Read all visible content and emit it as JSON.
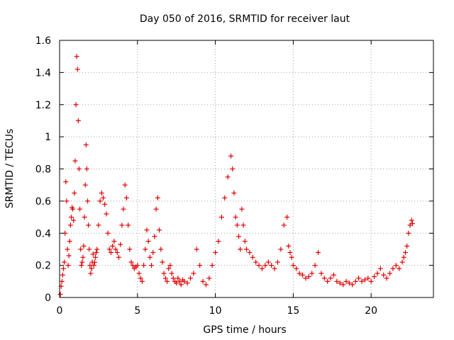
{
  "chart_data": {
    "type": "scatter",
    "title": "Day 050 of 2016, SRMTID for receiver laut",
    "xlabel": "GPS time / hours",
    "ylabel": "SRMTID / TECUs",
    "xlim": [
      0,
      24
    ],
    "ylim": [
      0,
      1.6
    ],
    "xticks": [
      0,
      5,
      10,
      15,
      20
    ],
    "xtick_labels": [
      "0",
      "5",
      "10",
      "15",
      "20"
    ],
    "yticks": [
      0,
      0.2,
      0.4,
      0.6,
      0.8,
      1.0,
      1.2,
      1.4,
      1.6
    ],
    "ytick_labels": [
      "0",
      "0.2",
      "0.4",
      "0.6",
      "0.8",
      "1",
      "1.2",
      "1.4",
      "1.6"
    ],
    "grid": true,
    "marker": "+",
    "color": "#e00000",
    "series": [
      {
        "name": "laut",
        "x": [
          0.05,
          0.1,
          0.15,
          0.2,
          0.25,
          0.3,
          0.35,
          0.4,
          0.45,
          0.5,
          0.55,
          0.6,
          0.65,
          0.7,
          0.75,
          0.8,
          0.85,
          0.9,
          0.95,
          1.0,
          1.05,
          1.1,
          1.15,
          1.2,
          1.25,
          1.3,
          1.35,
          1.4,
          1.45,
          1.5,
          1.55,
          1.6,
          1.65,
          1.7,
          1.75,
          1.8,
          1.85,
          1.9,
          1.95,
          2.0,
          2.05,
          2.1,
          2.15,
          2.2,
          2.25,
          2.3,
          2.35,
          2.4,
          2.5,
          2.6,
          2.7,
          2.8,
          2.9,
          3.0,
          3.1,
          3.2,
          3.3,
          3.4,
          3.5,
          3.6,
          3.7,
          3.8,
          3.9,
          4.0,
          4.1,
          4.2,
          4.3,
          4.4,
          4.5,
          4.6,
          4.7,
          4.8,
          4.9,
          5.0,
          5.1,
          5.2,
          5.3,
          5.4,
          5.5,
          5.6,
          5.7,
          5.8,
          5.9,
          6.0,
          6.1,
          6.2,
          6.3,
          6.4,
          6.5,
          6.6,
          6.7,
          6.8,
          6.9,
          7.0,
          7.1,
          7.2,
          7.3,
          7.4,
          7.5,
          7.6,
          7.7,
          7.8,
          7.9,
          8.0,
          8.2,
          8.4,
          8.6,
          8.8,
          9.0,
          9.2,
          9.4,
          9.6,
          9.8,
          10.0,
          10.2,
          10.4,
          10.6,
          10.8,
          11.0,
          11.1,
          11.2,
          11.3,
          11.4,
          11.5,
          11.6,
          11.7,
          11.8,
          11.9,
          12.0,
          12.2,
          12.4,
          12.6,
          12.8,
          13.0,
          13.2,
          13.4,
          13.6,
          13.8,
          14.0,
          14.2,
          14.4,
          14.6,
          14.7,
          14.8,
          14.9,
          15.0,
          15.2,
          15.4,
          15.6,
          15.8,
          16.0,
          16.2,
          16.4,
          16.6,
          16.8,
          17.0,
          17.2,
          17.4,
          17.6,
          17.8,
          18.0,
          18.2,
          18.4,
          18.6,
          18.8,
          19.0,
          19.2,
          19.4,
          19.6,
          19.8,
          20.0,
          20.2,
          20.4,
          20.6,
          20.8,
          21.0,
          21.2,
          21.4,
          21.6,
          21.8,
          22.0,
          22.1,
          22.2,
          22.3,
          22.4,
          22.5,
          22.6,
          22.65
        ],
        "y": [
          0.02,
          0.07,
          0.1,
          0.14,
          0.18,
          0.22,
          0.4,
          0.72,
          0.6,
          0.3,
          0.2,
          0.26,
          0.35,
          0.45,
          0.5,
          0.56,
          0.55,
          0.48,
          0.65,
          0.85,
          1.2,
          1.5,
          1.42,
          1.1,
          0.8,
          0.55,
          0.3,
          0.2,
          0.22,
          0.25,
          0.32,
          0.5,
          0.7,
          0.95,
          0.8,
          0.6,
          0.45,
          0.3,
          0.2,
          0.15,
          0.18,
          0.22,
          0.27,
          0.2,
          0.22,
          0.25,
          0.28,
          0.3,
          0.45,
          0.6,
          0.65,
          0.62,
          0.58,
          0.52,
          0.4,
          0.3,
          0.28,
          0.32,
          0.35,
          0.3,
          0.28,
          0.25,
          0.33,
          0.45,
          0.55,
          0.7,
          0.62,
          0.45,
          0.3,
          0.22,
          0.2,
          0.18,
          0.19,
          0.2,
          0.15,
          0.12,
          0.1,
          0.2,
          0.3,
          0.42,
          0.35,
          0.25,
          0.2,
          0.28,
          0.38,
          0.55,
          0.62,
          0.42,
          0.3,
          0.22,
          0.15,
          0.12,
          0.1,
          0.18,
          0.2,
          0.15,
          0.12,
          0.1,
          0.09,
          0.12,
          0.1,
          0.08,
          0.11,
          0.1,
          0.09,
          0.12,
          0.15,
          0.3,
          0.2,
          0.1,
          0.08,
          0.12,
          0.2,
          0.28,
          0.35,
          0.5,
          0.62,
          0.75,
          0.88,
          0.8,
          0.65,
          0.5,
          0.45,
          0.38,
          0.3,
          0.55,
          0.45,
          0.35,
          0.3,
          0.28,
          0.25,
          0.22,
          0.2,
          0.18,
          0.2,
          0.22,
          0.2,
          0.18,
          0.22,
          0.3,
          0.45,
          0.5,
          0.32,
          0.28,
          0.25,
          0.2,
          0.18,
          0.15,
          0.14,
          0.12,
          0.13,
          0.15,
          0.2,
          0.28,
          0.15,
          0.12,
          0.1,
          0.12,
          0.14,
          0.1,
          0.09,
          0.08,
          0.1,
          0.09,
          0.08,
          0.1,
          0.12,
          0.1,
          0.11,
          0.12,
          0.1,
          0.13,
          0.15,
          0.18,
          0.14,
          0.12,
          0.15,
          0.18,
          0.2,
          0.18,
          0.22,
          0.25,
          0.28,
          0.32,
          0.4,
          0.45,
          0.48,
          0.46
        ]
      }
    ]
  }
}
